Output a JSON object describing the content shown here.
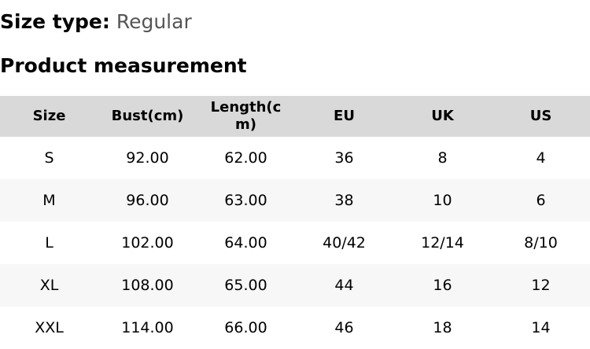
{
  "size_type": {
    "label": "Size type:",
    "value": "Regular"
  },
  "title": "Product measurement",
  "columns": [
    "Size",
    "Bust(cm)",
    "Length(cm)",
    "EU",
    "UK",
    "US"
  ],
  "rows": [
    [
      "S",
      "92.00",
      "62.00",
      "36",
      "8",
      "4"
    ],
    [
      "M",
      "96.00",
      "63.00",
      "38",
      "10",
      "6"
    ],
    [
      "L",
      "102.00",
      "64.00",
      "40/42",
      "12/14",
      "8/10"
    ],
    [
      "XL",
      "108.00",
      "65.00",
      "44",
      "16",
      "12"
    ],
    [
      "XXL",
      "114.00",
      "66.00",
      "46",
      "18",
      "14"
    ]
  ]
}
